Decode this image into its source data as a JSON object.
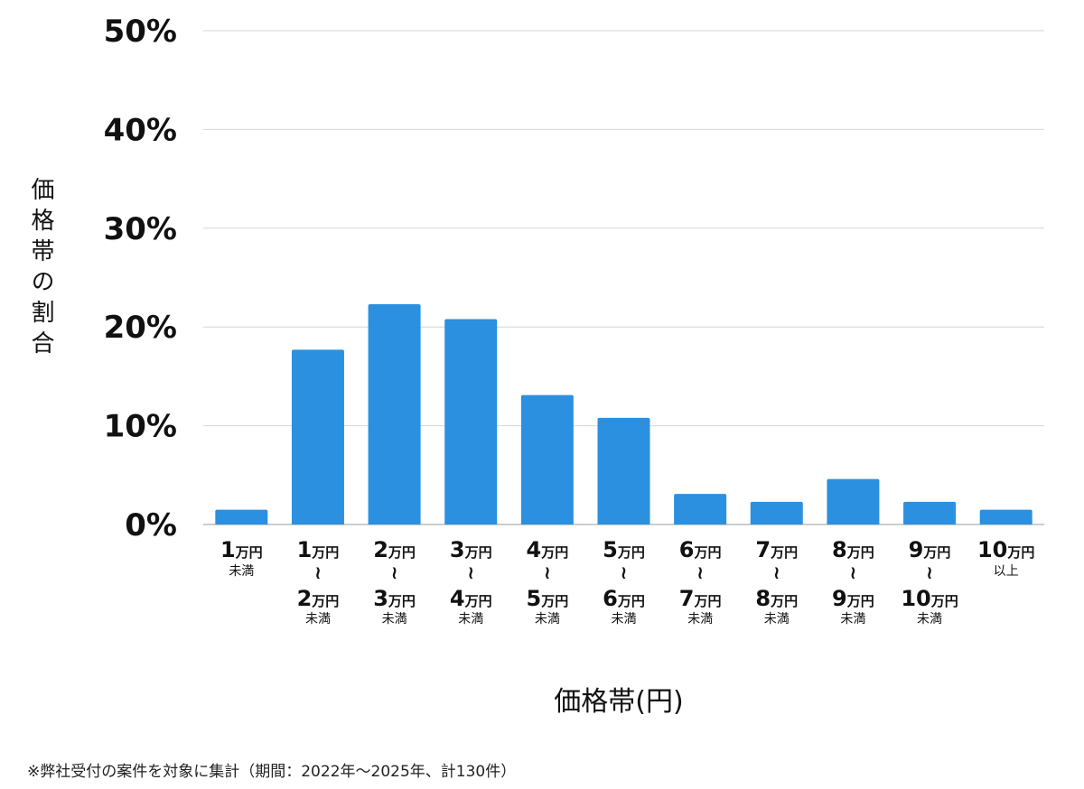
{
  "chart_data": {
    "type": "bar",
    "bar_color": "#2b90e0",
    "ylabel": "価格帯の割合",
    "xlabel": "価格帯(円)",
    "note": "※弊社受付の案件を対象に集計（期間：2022年～2025年、計130件）",
    "ylim": [
      0,
      50
    ],
    "yticks": [
      "0%",
      "10%",
      "20%",
      "30%",
      "40%",
      "50%"
    ],
    "grid": true,
    "categories": [
      {
        "from_num": "1",
        "from_unit": "万円",
        "to_num": "",
        "to_unit": "",
        "suffix": "未満"
      },
      {
        "from_num": "1",
        "from_unit": "万円",
        "to_num": "2",
        "to_unit": "万円",
        "suffix": "未満"
      },
      {
        "from_num": "2",
        "from_unit": "万円",
        "to_num": "3",
        "to_unit": "万円",
        "suffix": "未満"
      },
      {
        "from_num": "3",
        "from_unit": "万円",
        "to_num": "4",
        "to_unit": "万円",
        "suffix": "未満"
      },
      {
        "from_num": "4",
        "from_unit": "万円",
        "to_num": "5",
        "to_unit": "万円",
        "suffix": "未満"
      },
      {
        "from_num": "5",
        "from_unit": "万円",
        "to_num": "6",
        "to_unit": "万円",
        "suffix": "未満"
      },
      {
        "from_num": "6",
        "from_unit": "万円",
        "to_num": "7",
        "to_unit": "万円",
        "suffix": "未満"
      },
      {
        "from_num": "7",
        "from_unit": "万円",
        "to_num": "8",
        "to_unit": "万円",
        "suffix": "未満"
      },
      {
        "from_num": "8",
        "from_unit": "万円",
        "to_num": "9",
        "to_unit": "万円",
        "suffix": "未満"
      },
      {
        "from_num": "9",
        "from_unit": "万円",
        "to_num": "10",
        "to_unit": "万円",
        "suffix": "未満"
      },
      {
        "from_num": "10",
        "from_unit": "万円",
        "to_num": "",
        "to_unit": "",
        "suffix": "以上"
      }
    ],
    "tilde": "≀",
    "values": [
      1.5,
      17.7,
      22.3,
      20.8,
      13.1,
      10.8,
      3.1,
      2.3,
      4.6,
      2.3,
      1.5
    ]
  }
}
